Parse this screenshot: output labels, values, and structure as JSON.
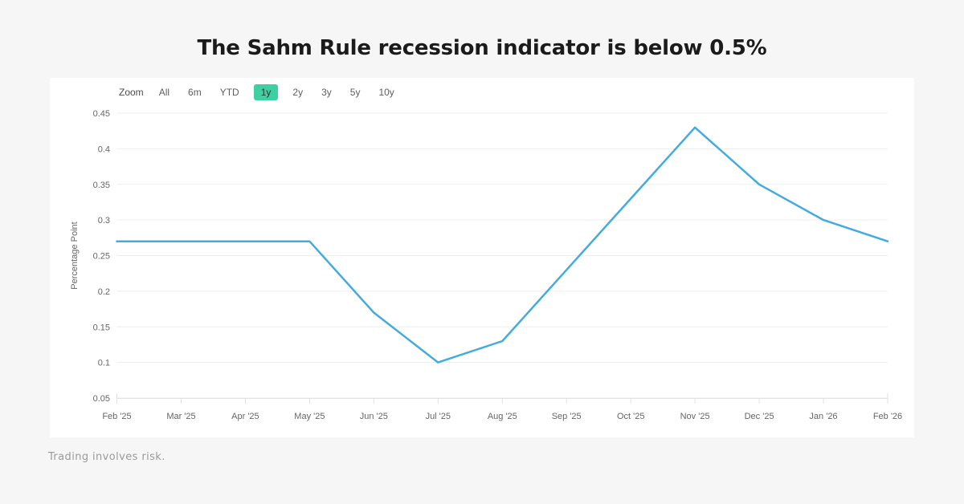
{
  "page": {
    "title": "The Sahm Rule recession indicator is below 0.5%",
    "footer_note": "Trading involves risk."
  },
  "toolbar": {
    "zoom_label": "Zoom",
    "buttons": [
      {
        "label": "All",
        "selected": false
      },
      {
        "label": "6m",
        "selected": false
      },
      {
        "label": "YTD",
        "selected": false
      },
      {
        "label": "1y",
        "selected": true
      },
      {
        "label": "2y",
        "selected": false
      },
      {
        "label": "3y",
        "selected": false
      },
      {
        "label": "5y",
        "selected": false
      },
      {
        "label": "10y",
        "selected": false
      }
    ],
    "selected_bg_color": "#3ed0a2"
  },
  "chart_data": {
    "type": "line",
    "title": "",
    "categories": [
      "Feb '25",
      "Mar '25",
      "Apr '25",
      "May '25",
      "Jun '25",
      "Jul '25",
      "Aug '25",
      "Sep '25",
      "Oct '25",
      "Nov '25",
      "Dec '25",
      "Jan '26",
      "Feb '26"
    ],
    "values": [
      0.27,
      0.27,
      0.27,
      0.27,
      0.17,
      0.1,
      0.13,
      0.23,
      0.33,
      0.43,
      0.35,
      0.3,
      0.27
    ],
    "xlabel": "",
    "ylabel": "Percentage Point",
    "ylim": [
      0.05,
      0.45
    ],
    "ytick_step": 0.05,
    "grid": true,
    "legend": false,
    "line_color": "#44abdf",
    "grid_color": "#ededed",
    "axis_color": "#e2e2e2",
    "label_color": "#666666"
  }
}
